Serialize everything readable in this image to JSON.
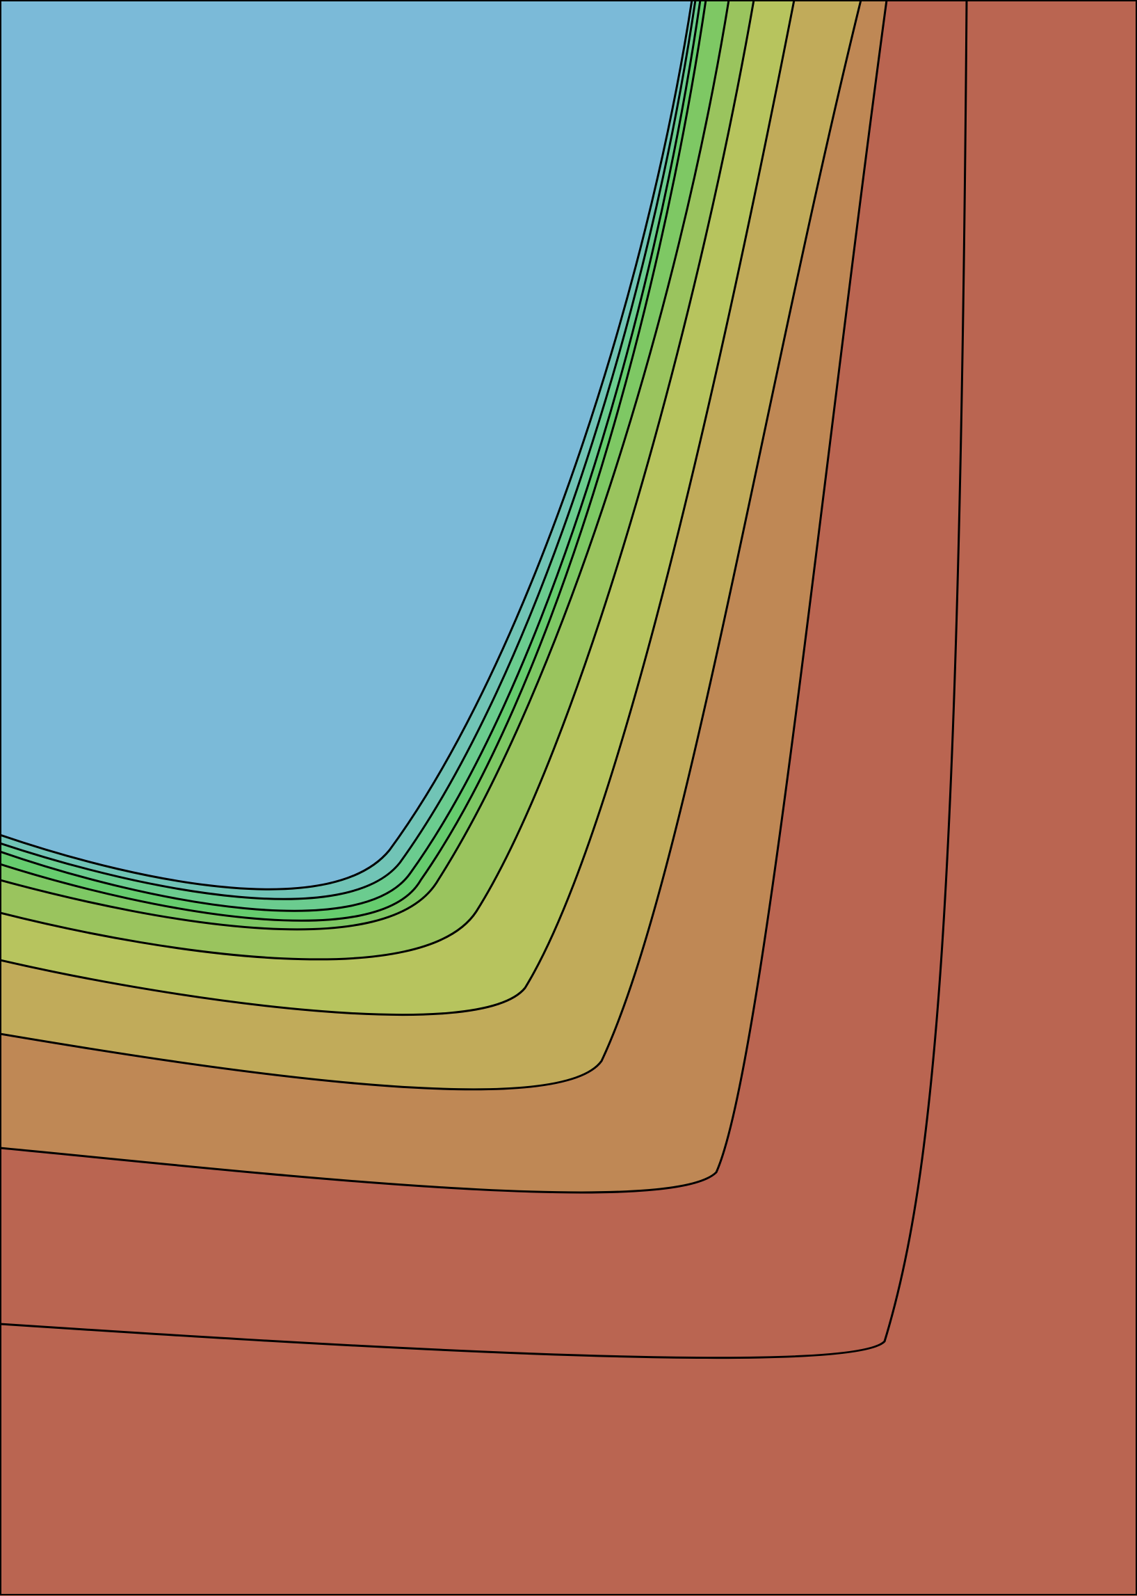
{
  "chart_data": {
    "type": "contour",
    "title": "",
    "xlabel": "",
    "ylabel": "",
    "grid": false,
    "legend": "none",
    "levels": [
      {
        "band": 1,
        "fill": "#7bbad8"
      },
      {
        "band": 2,
        "fill": "#71c4b6"
      },
      {
        "band": 3,
        "fill": "#6bcc8f"
      },
      {
        "band": 4,
        "fill": "#66cc6e"
      },
      {
        "band": 5,
        "fill": "#7ec864"
      },
      {
        "band": 6,
        "fill": "#9ac45e"
      },
      {
        "band": 7,
        "fill": "#b7c45e"
      },
      {
        "band": 8,
        "fill": "#c1ab5a"
      },
      {
        "band": 9,
        "fill": "#bf8855"
      },
      {
        "band": 10,
        "fill": "#ba6551"
      }
    ],
    "line_color": "#000000"
  }
}
